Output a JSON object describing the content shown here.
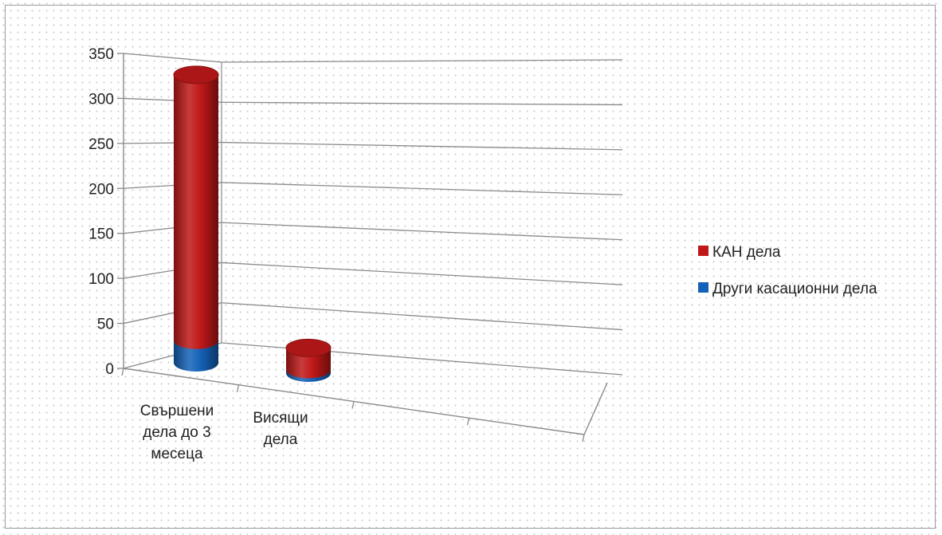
{
  "chart_data": {
    "type": "bar",
    "style": "3d-cylinder-stacked",
    "categories": [
      [
        "Свършени",
        "дела до 3",
        "месеца"
      ],
      [
        "Висящи",
        "дела"
      ]
    ],
    "series": [
      {
        "name": "Други касационни дела",
        "color": "#1462b8",
        "values": [
          25,
          4
        ]
      },
      {
        "name": "КАН дела",
        "color": "#c01818",
        "values": [
          295,
          24
        ]
      }
    ],
    "ylim": [
      0,
      350
    ],
    "yticks": [
      0,
      50,
      100,
      150,
      200,
      250,
      300,
      350
    ],
    "grid": true,
    "legend_position": "right",
    "legend_order": [
      "КАН дела",
      "Други касационни дела"
    ]
  }
}
